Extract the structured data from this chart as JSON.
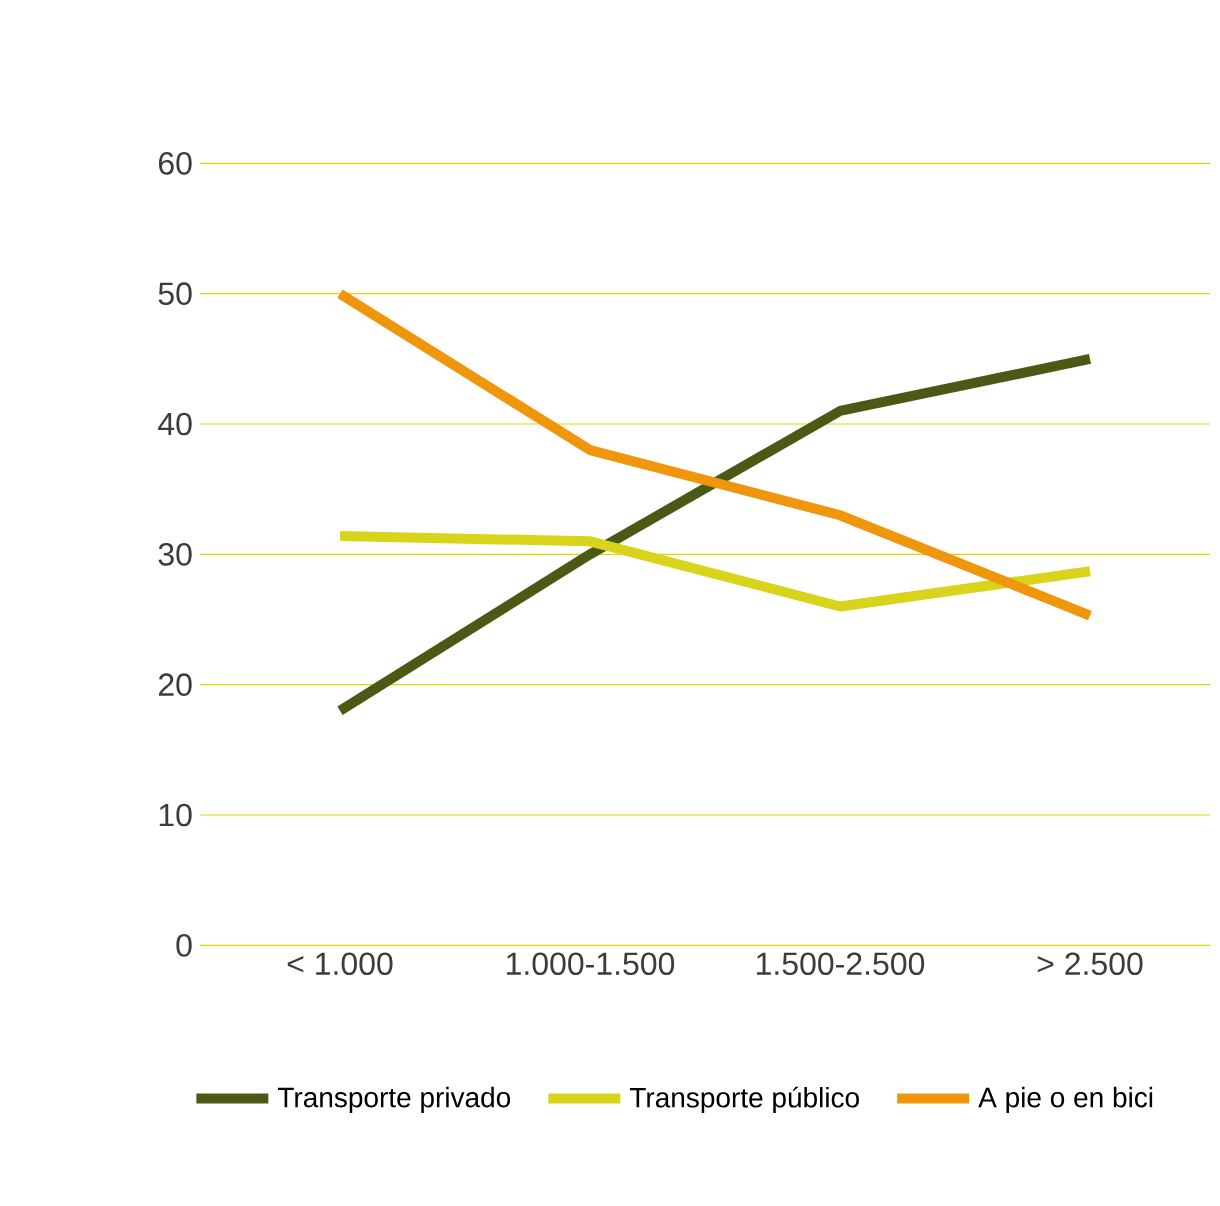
{
  "chart_data": {
    "type": "line",
    "categories": [
      "< 1.000",
      "1.000-1.500",
      "1.500-2.500",
      "> 2.500"
    ],
    "series": [
      {
        "name": "Transporte privado",
        "color": "#4a5a14",
        "values": [
          18,
          30,
          41,
          45
        ]
      },
      {
        "name": "Transporte público",
        "color": "#d8d41c",
        "values": [
          31.4,
          31,
          26,
          28.7
        ]
      },
      {
        "name": "A pie o en bici",
        "color": "#f0960c",
        "values": [
          50,
          38,
          33,
          25.3
        ]
      }
    ],
    "ylim": [
      0,
      60
    ],
    "yticks": [
      0,
      10,
      20,
      30,
      40,
      50,
      60
    ],
    "grid": "y",
    "legend": "bottom",
    "line_style": "solid"
  }
}
